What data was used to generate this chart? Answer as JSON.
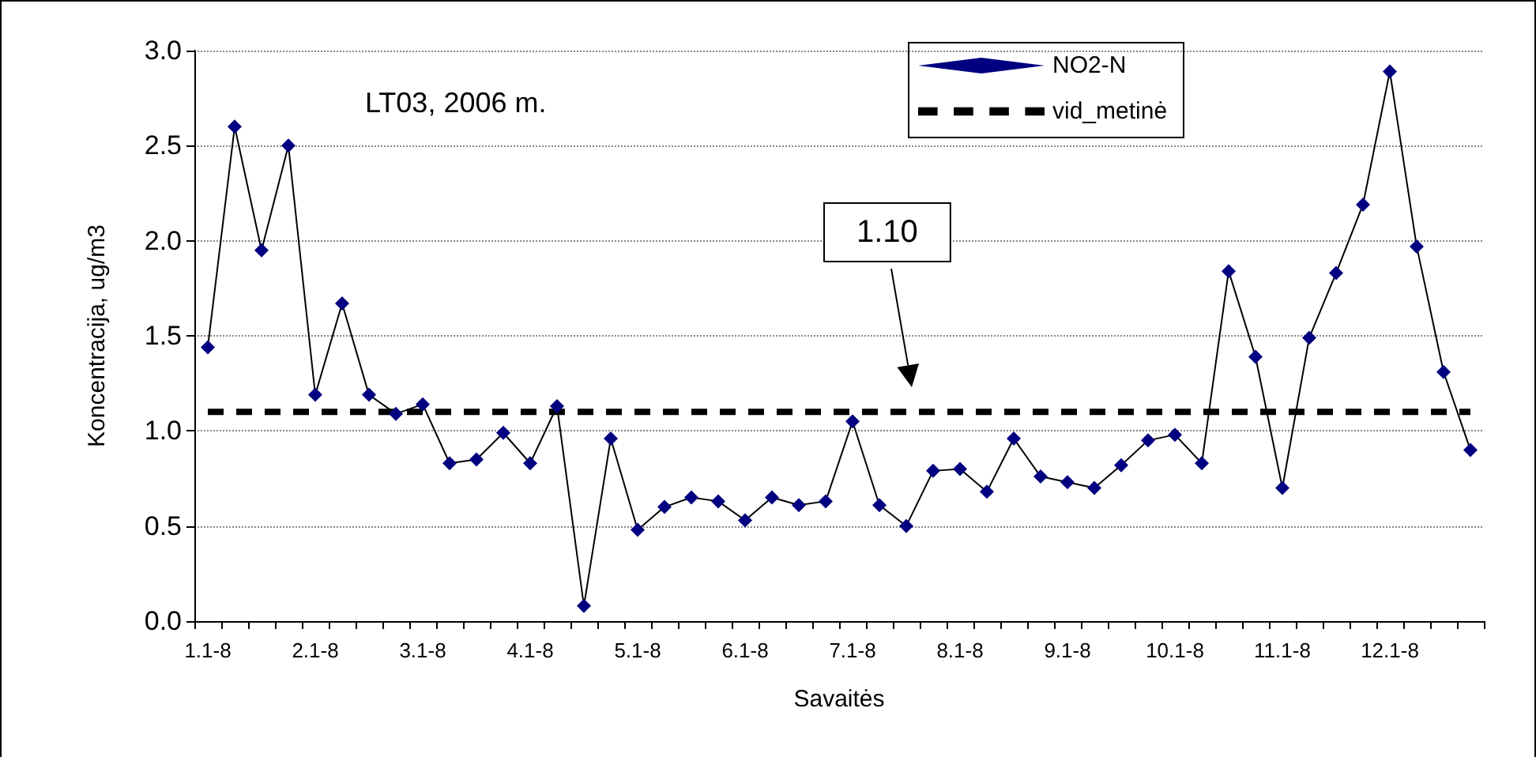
{
  "chart_data": {
    "type": "line",
    "title": "LT03, 2006 m.",
    "xlabel": "Savaitės",
    "ylabel": "Koncentracija, ug/m3",
    "categories": [
      "1.1-8",
      null,
      null,
      null,
      "2.1-8",
      null,
      null,
      null,
      "3.1-8",
      null,
      null,
      null,
      "4.1-8",
      null,
      null,
      null,
      "5.1-8",
      null,
      null,
      null,
      "6.1-8",
      null,
      null,
      null,
      "7.1-8",
      null,
      null,
      null,
      "8.1-8",
      null,
      null,
      null,
      "9.1-8",
      null,
      null,
      null,
      "10.1-8",
      null,
      null,
      null,
      "11.1-8",
      null,
      null,
      null,
      "12.1-8",
      null,
      null,
      null
    ],
    "series": [
      {
        "name": "NO2-N",
        "color": "#000080",
        "marker": "diamond",
        "line_style": "solid",
        "values": [
          1.44,
          2.6,
          1.95,
          2.5,
          1.19,
          1.67,
          1.19,
          1.09,
          1.14,
          0.83,
          0.85,
          0.99,
          0.83,
          1.13,
          0.08,
          0.96,
          0.48,
          0.6,
          0.65,
          0.63,
          0.53,
          0.65,
          0.61,
          0.63,
          1.05,
          0.61,
          0.5,
          0.79,
          0.8,
          0.68,
          0.96,
          0.76,
          0.73,
          0.7,
          0.82,
          0.95,
          0.98,
          0.83,
          1.84,
          1.39,
          0.7,
          1.49,
          1.83,
          2.19,
          2.89,
          1.97,
          1.31,
          0.9
        ]
      },
      {
        "name": "vid_metinė",
        "color": "#000000",
        "marker": "none",
        "line_style": "dashed",
        "values": [
          1.1,
          1.1,
          1.1,
          1.1,
          1.1,
          1.1,
          1.1,
          1.1,
          1.1,
          1.1,
          1.1,
          1.1,
          1.1,
          1.1,
          1.1,
          1.1,
          1.1,
          1.1,
          1.1,
          1.1,
          1.1,
          1.1,
          1.1,
          1.1,
          1.1,
          1.1,
          1.1,
          1.1,
          1.1,
          1.1,
          1.1,
          1.1,
          1.1,
          1.1,
          1.1,
          1.1,
          1.1,
          1.1,
          1.1,
          1.1,
          1.1,
          1.1,
          1.1,
          1.1,
          1.1,
          1.1,
          1.1,
          1.1
        ]
      }
    ],
    "annotations": [
      "1.10"
    ],
    "ylim": [
      0,
      3
    ],
    "yticks": [
      {
        "value": 0,
        "label": "0.0"
      },
      {
        "value": 0.5,
        "label": "0.5"
      },
      {
        "value": 1,
        "label": "1.0"
      },
      {
        "value": 1.5,
        "label": "1.5"
      },
      {
        "value": 2,
        "label": "2.0"
      },
      {
        "value": 2.5,
        "label": "2.5"
      },
      {
        "value": 3,
        "label": "3.0"
      }
    ],
    "grid": "y",
    "legend": "top right"
  }
}
